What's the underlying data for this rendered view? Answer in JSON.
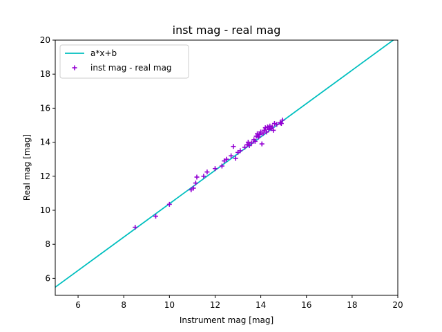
{
  "chart_data": {
    "type": "scatter",
    "title": "inst mag - real mag",
    "xlabel": "Instrument mag [mag]",
    "ylabel": "Real mag [mag]",
    "xlim": [
      5,
      20
    ],
    "ylim": [
      5,
      20
    ],
    "xticks": [
      6,
      8,
      10,
      12,
      14,
      16,
      18,
      20
    ],
    "yticks": [
      6,
      8,
      10,
      12,
      14,
      16,
      18,
      20
    ],
    "grid": false,
    "legend_position": "top-left",
    "fit_line": {
      "name": "a*x+b",
      "color": "#00bfbf",
      "x": [
        5,
        19.8
      ],
      "y": [
        5.48,
        20.0
      ]
    },
    "series": [
      {
        "name": "inst mag - real mag",
        "color": "#9400d3",
        "marker": "plus",
        "x": [
          8.5,
          9.4,
          10.0,
          10.95,
          11.05,
          11.15,
          11.2,
          11.5,
          11.65,
          12.0,
          12.3,
          12.4,
          12.5,
          12.7,
          12.8,
          12.9,
          13.0,
          13.1,
          13.3,
          13.4,
          13.45,
          13.5,
          13.6,
          13.7,
          13.75,
          13.8,
          13.85,
          13.9,
          13.95,
          14.0,
          14.05,
          14.1,
          14.15,
          14.2,
          14.25,
          14.3,
          14.35,
          14.4,
          14.45,
          14.5,
          14.55,
          14.6,
          14.7,
          14.85,
          14.95,
          14.9
        ],
        "y": [
          9.0,
          9.65,
          10.35,
          11.2,
          11.3,
          11.6,
          11.95,
          12.0,
          12.25,
          12.45,
          12.6,
          12.9,
          13.0,
          13.2,
          13.75,
          13.05,
          13.4,
          13.5,
          13.7,
          13.85,
          14.0,
          13.8,
          13.95,
          14.15,
          14.05,
          14.35,
          14.5,
          14.3,
          14.45,
          14.6,
          13.9,
          14.5,
          14.7,
          14.85,
          14.6,
          14.9,
          14.75,
          14.95,
          14.8,
          14.9,
          14.7,
          15.1,
          15.05,
          15.15,
          15.3,
          15.1
        ]
      }
    ]
  }
}
